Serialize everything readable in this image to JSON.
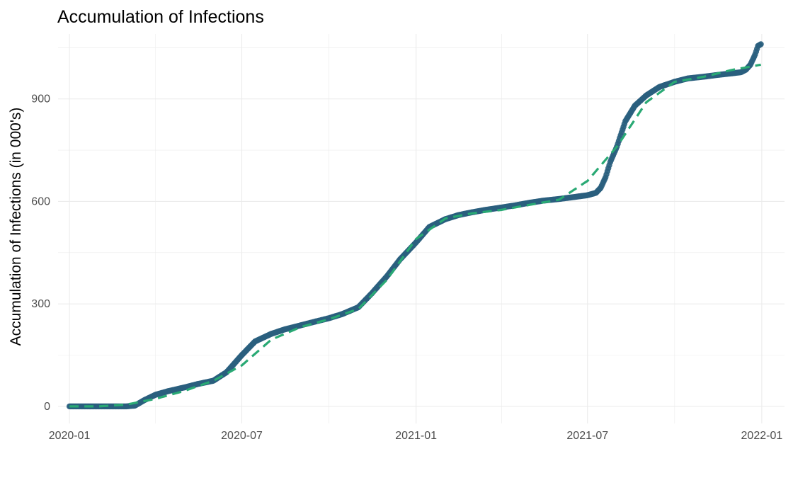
{
  "chart_data": {
    "type": "scatter",
    "title": "Accumulation of Infections",
    "xlabel": "",
    "ylabel": "Accumulation of Infections (in 000's)",
    "x_ticks": [
      "2020-01",
      "2020-07",
      "2021-01",
      "2021-07",
      "2022-01"
    ],
    "y_ticks": [
      0,
      300,
      600,
      900
    ],
    "xlim": [
      "2019-12-20",
      "2022-01-25"
    ],
    "ylim": [
      -50,
      1090
    ],
    "grid": true,
    "legend": "none",
    "colors": {
      "points": "#2a5f7e",
      "smooth": "#29a974",
      "connector": "#d9d9d9",
      "grid": "#ebebeb"
    },
    "series": [
      {
        "kind": "points",
        "x": [
          "2020-01-01",
          "2020-01-15",
          "2020-02-01",
          "2020-02-15",
          "2020-03-01",
          "2020-03-10",
          "2020-03-20",
          "2020-04-01",
          "2020-04-15",
          "2020-05-01",
          "2020-05-15",
          "2020-06-01",
          "2020-06-15",
          "2020-07-01",
          "2020-07-15",
          "2020-08-01",
          "2020-08-15",
          "2020-09-01",
          "2020-09-15",
          "2020-10-01",
          "2020-10-15",
          "2020-11-01",
          "2020-11-15",
          "2020-12-01",
          "2020-12-15",
          "2021-01-01",
          "2021-01-15",
          "2021-02-01",
          "2021-02-15",
          "2021-03-01",
          "2021-03-15",
          "2021-04-01",
          "2021-04-15",
          "2021-05-01",
          "2021-05-15",
          "2021-06-01",
          "2021-06-15",
          "2021-07-01",
          "2021-07-10",
          "2021-07-15",
          "2021-07-20",
          "2021-07-25",
          "2021-08-01",
          "2021-08-10",
          "2021-08-20",
          "2021-09-01",
          "2021-09-15",
          "2021-10-01",
          "2021-10-15",
          "2021-11-01",
          "2021-11-15",
          "2021-12-01",
          "2021-12-10",
          "2021-12-15",
          "2021-12-20",
          "2021-12-25",
          "2021-12-28",
          "2021-12-31"
        ],
        "y": [
          0,
          0,
          0,
          0,
          0,
          2,
          18,
          34,
          45,
          55,
          65,
          75,
          100,
          150,
          190,
          212,
          225,
          237,
          247,
          258,
          270,
          290,
          330,
          380,
          430,
          480,
          525,
          548,
          560,
          568,
          575,
          582,
          588,
          596,
          602,
          607,
          612,
          618,
          625,
          640,
          670,
          715,
          760,
          835,
          880,
          910,
          935,
          950,
          960,
          965,
          970,
          975,
          978,
          985,
          1000,
          1030,
          1055,
          1060
        ]
      },
      {
        "kind": "smooth",
        "x": [
          "2020-01-01",
          "2020-02-01",
          "2020-03-01",
          "2020-04-01",
          "2020-05-01",
          "2020-06-01",
          "2020-07-01",
          "2020-08-01",
          "2020-09-01",
          "2020-10-01",
          "2020-11-01",
          "2020-12-01",
          "2021-01-01",
          "2021-02-01",
          "2021-03-01",
          "2021-04-01",
          "2021-05-01",
          "2021-06-01",
          "2021-07-01",
          "2021-08-01",
          "2021-09-01",
          "2021-10-01",
          "2021-11-01",
          "2021-12-01",
          "2021-12-31"
        ],
        "y": [
          0,
          0,
          5,
          22,
          45,
          75,
          120,
          195,
          232,
          255,
          285,
          370,
          490,
          550,
          565,
          575,
          590,
          605,
          660,
          760,
          890,
          950,
          965,
          985,
          1000
        ]
      }
    ]
  }
}
